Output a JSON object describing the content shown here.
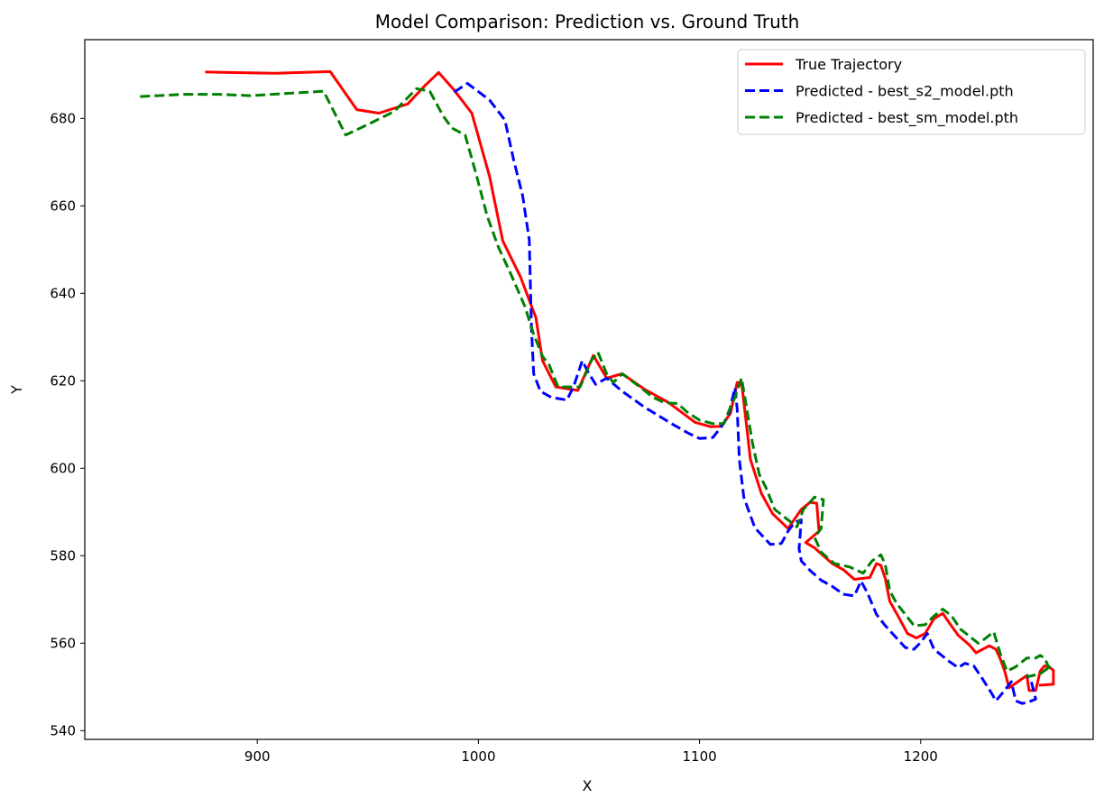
{
  "chart_data": {
    "type": "line",
    "title": "Model Comparison: Prediction vs. Ground Truth",
    "xlabel": "X",
    "ylabel": "Y",
    "xlim": [
      822,
      1278
    ],
    "ylim": [
      538,
      698
    ],
    "xticks": [
      900,
      1000,
      1100,
      1200
    ],
    "yticks": [
      540,
      560,
      580,
      600,
      620,
      640,
      660,
      680
    ],
    "grid": false,
    "legend_position": "top-right",
    "series": [
      {
        "name": "True Trajectory",
        "color": "#ff0000",
        "style": "solid",
        "points": [
          [
            877,
            690.6
          ],
          [
            908,
            690.3
          ],
          [
            933,
            690.7
          ],
          [
            945,
            682.0
          ],
          [
            955,
            681.2
          ],
          [
            968,
            683.3
          ],
          [
            976,
            687.6
          ],
          [
            982,
            690.5
          ],
          [
            989,
            686.5
          ],
          [
            997,
            681.2
          ],
          [
            1005,
            666.8
          ],
          [
            1011,
            652.0
          ],
          [
            1019,
            643.8
          ],
          [
            1026,
            634.4
          ],
          [
            1029,
            624.6
          ],
          [
            1035,
            618.6
          ],
          [
            1045,
            617.8
          ],
          [
            1052,
            625.8
          ],
          [
            1058,
            620.6
          ],
          [
            1065,
            621.6
          ],
          [
            1075,
            618.1
          ],
          [
            1086,
            615.0
          ],
          [
            1098,
            610.5
          ],
          [
            1105,
            609.5
          ],
          [
            1110,
            609.6
          ],
          [
            1114,
            612.6
          ],
          [
            1117,
            619.6
          ],
          [
            1119,
            619.6
          ],
          [
            1123,
            602.0
          ],
          [
            1128,
            594.2
          ],
          [
            1133,
            589.6
          ],
          [
            1140,
            586.2
          ],
          [
            1146,
            590.6
          ],
          [
            1150,
            592.2
          ],
          [
            1153,
            592.0
          ],
          [
            1154,
            585.6
          ],
          [
            1148,
            583.0
          ],
          [
            1152,
            581.8
          ],
          [
            1160,
            578.2
          ],
          [
            1165,
            576.8
          ],
          [
            1170,
            574.6
          ],
          [
            1177,
            575.0
          ],
          [
            1180,
            578.2
          ],
          [
            1182,
            577.8
          ],
          [
            1184,
            574.8
          ],
          [
            1186,
            569.6
          ],
          [
            1190,
            566.0
          ],
          [
            1194,
            562.2
          ],
          [
            1198,
            561.2
          ],
          [
            1202,
            562.2
          ],
          [
            1206,
            565.6
          ],
          [
            1210,
            566.8
          ],
          [
            1213,
            564.6
          ],
          [
            1217,
            561.8
          ],
          [
            1222,
            559.6
          ],
          [
            1225,
            557.8
          ],
          [
            1231,
            559.4
          ],
          [
            1234,
            558.6
          ],
          [
            1236,
            556.4
          ],
          [
            1238,
            553.6
          ],
          [
            1240,
            549.8
          ],
          [
            1244,
            551.2
          ],
          [
            1248,
            552.6
          ],
          [
            1249,
            549.2
          ],
          [
            1252,
            549.2
          ],
          [
            1254,
            553.6
          ],
          [
            1256,
            554.8
          ],
          [
            1258,
            554.6
          ],
          [
            1260,
            553.8
          ],
          [
            1260,
            550.6
          ],
          [
            1254,
            550.4
          ]
        ]
      },
      {
        "name": "Predicted - best_s2_model.pth",
        "color": "#0000ff",
        "style": "dashed",
        "points": [
          [
            989,
            686.0
          ],
          [
            995,
            688.0
          ],
          [
            1005,
            684.2
          ],
          [
            1012,
            679.6
          ],
          [
            1016,
            670.4
          ],
          [
            1020,
            662.4
          ],
          [
            1023,
            652.2
          ],
          [
            1024,
            631.6
          ],
          [
            1025,
            621.6
          ],
          [
            1028,
            617.6
          ],
          [
            1033,
            616.2
          ],
          [
            1040,
            615.6
          ],
          [
            1043,
            618.6
          ],
          [
            1047,
            624.6
          ],
          [
            1050,
            621.6
          ],
          [
            1053,
            619.2
          ],
          [
            1058,
            620.6
          ],
          [
            1065,
            617.6
          ],
          [
            1075,
            614.0
          ],
          [
            1088,
            610.0
          ],
          [
            1095,
            608.0
          ],
          [
            1100,
            606.8
          ],
          [
            1106,
            607.0
          ],
          [
            1110,
            609.6
          ],
          [
            1113,
            612.0
          ],
          [
            1116,
            618.4
          ],
          [
            1117,
            613.6
          ],
          [
            1118,
            602.0
          ],
          [
            1120,
            593.4
          ],
          [
            1125,
            586.4
          ],
          [
            1132,
            582.6
          ],
          [
            1137,
            582.8
          ],
          [
            1140,
            585.6
          ],
          [
            1143,
            587.6
          ],
          [
            1146,
            588.2
          ],
          [
            1145,
            581.6
          ],
          [
            1146,
            578.8
          ],
          [
            1150,
            576.6
          ],
          [
            1155,
            574.4
          ],
          [
            1160,
            573.0
          ],
          [
            1165,
            571.2
          ],
          [
            1170,
            570.8
          ],
          [
            1173,
            574.2
          ],
          [
            1176,
            571.4
          ],
          [
            1180,
            566.6
          ],
          [
            1184,
            564.0
          ],
          [
            1188,
            561.8
          ],
          [
            1193,
            559.0
          ],
          [
            1197,
            558.6
          ],
          [
            1200,
            560.2
          ],
          [
            1203,
            562.2
          ],
          [
            1206,
            558.6
          ],
          [
            1213,
            555.8
          ],
          [
            1217,
            554.4
          ],
          [
            1220,
            555.4
          ],
          [
            1224,
            554.8
          ],
          [
            1228,
            551.8
          ],
          [
            1232,
            548.6
          ],
          [
            1234,
            546.8
          ],
          [
            1238,
            549.2
          ],
          [
            1241,
            551.2
          ],
          [
            1243,
            546.8
          ],
          [
            1246,
            546.2
          ],
          [
            1249,
            546.6
          ],
          [
            1252,
            547.2
          ],
          [
            1250,
            551.2
          ],
          [
            1248,
            552.8
          ]
        ]
      },
      {
        "name": "Predicted - best_sm_model.pth",
        "color": "#008000",
        "style": "dashed",
        "points": [
          [
            847,
            685.0
          ],
          [
            867,
            685.5
          ],
          [
            882,
            685.5
          ],
          [
            897,
            685.2
          ],
          [
            910,
            685.6
          ],
          [
            930,
            686.2
          ],
          [
            940,
            676.2
          ],
          [
            950,
            678.6
          ],
          [
            962,
            681.6
          ],
          [
            972,
            686.8
          ],
          [
            978,
            686.2
          ],
          [
            984,
            680.6
          ],
          [
            988,
            677.8
          ],
          [
            994,
            676.2
          ],
          [
            999,
            667.2
          ],
          [
            1004,
            657.6
          ],
          [
            1009,
            650.6
          ],
          [
            1015,
            644.0
          ],
          [
            1021,
            637.0
          ],
          [
            1025,
            630.6
          ],
          [
            1029,
            625.6
          ],
          [
            1032,
            623.6
          ],
          [
            1036,
            618.6
          ],
          [
            1041,
            618.6
          ],
          [
            1046,
            618.6
          ],
          [
            1051,
            624.6
          ],
          [
            1054,
            626.6
          ],
          [
            1058,
            621.6
          ],
          [
            1061,
            619.6
          ],
          [
            1065,
            621.6
          ],
          [
            1072,
            619.0
          ],
          [
            1079,
            616.2
          ],
          [
            1084,
            615.0
          ],
          [
            1090,
            614.8
          ],
          [
            1095,
            612.6
          ],
          [
            1100,
            611.0
          ],
          [
            1106,
            610.2
          ],
          [
            1111,
            610.2
          ],
          [
            1113,
            612.8
          ],
          [
            1116,
            616.2
          ],
          [
            1119,
            620.6
          ],
          [
            1121,
            614.6
          ],
          [
            1124,
            605.6
          ],
          [
            1127,
            598.6
          ],
          [
            1130,
            595.6
          ],
          [
            1134,
            590.6
          ],
          [
            1139,
            588.6
          ],
          [
            1144,
            586.6
          ],
          [
            1147,
            590.6
          ],
          [
            1152,
            593.4
          ],
          [
            1156,
            592.8
          ],
          [
            1155,
            586.2
          ],
          [
            1152,
            584.2
          ],
          [
            1155,
            580.8
          ],
          [
            1161,
            578.2
          ],
          [
            1168,
            577.4
          ],
          [
            1174,
            576.0
          ],
          [
            1178,
            578.8
          ],
          [
            1182,
            580.2
          ],
          [
            1184,
            578.0
          ],
          [
            1186,
            572.0
          ],
          [
            1189,
            569.2
          ],
          [
            1193,
            566.6
          ],
          [
            1197,
            564.0
          ],
          [
            1202,
            564.2
          ],
          [
            1206,
            566.2
          ],
          [
            1210,
            567.8
          ],
          [
            1214,
            566.2
          ],
          [
            1218,
            563.2
          ],
          [
            1222,
            561.6
          ],
          [
            1226,
            560.0
          ],
          [
            1229,
            561.0
          ],
          [
            1233,
            562.6
          ],
          [
            1236,
            557.6
          ],
          [
            1239,
            553.6
          ],
          [
            1243,
            554.6
          ],
          [
            1248,
            556.6
          ],
          [
            1252,
            556.6
          ],
          [
            1254,
            557.2
          ],
          [
            1256,
            556.6
          ],
          [
            1258,
            554.4
          ],
          [
            1259,
            554.8
          ],
          [
            1254,
            553.0
          ],
          [
            1249,
            552.4
          ],
          [
            1246,
            552.6
          ]
        ]
      }
    ]
  }
}
